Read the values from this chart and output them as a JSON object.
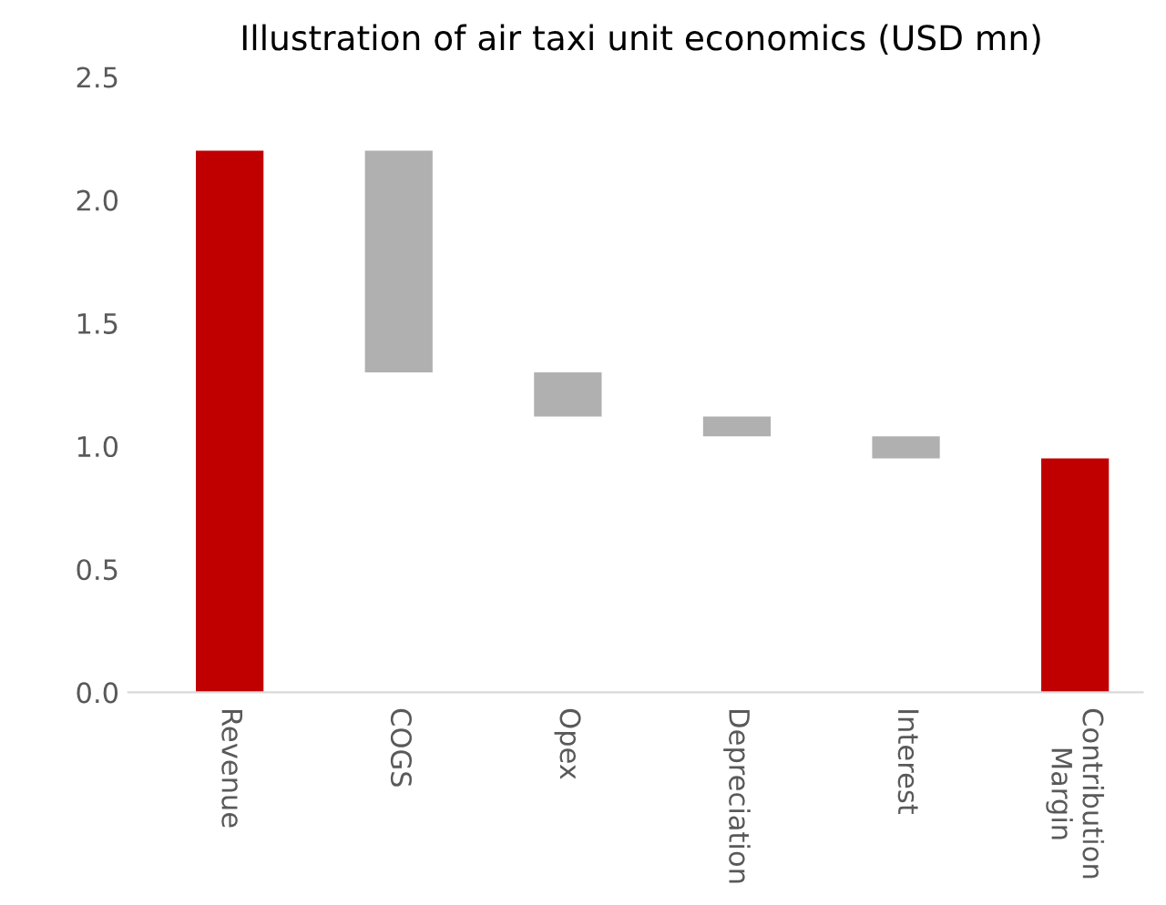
{
  "chart_data": {
    "type": "bar",
    "title": "Illustration of air taxi unit economics (USD mn)",
    "categories": [
      "Revenue",
      "COGS",
      "Opex",
      "Depreciation",
      "Interest",
      "Contribution\nMargin"
    ],
    "values": [
      2.2,
      -0.9,
      -0.18,
      -0.08,
      -0.09,
      0.95
    ],
    "base": [
      0,
      2.2,
      1.3,
      1.12,
      1.04,
      0
    ],
    "colors": [
      "#c00000",
      "#b0b0b0",
      "#b0b0b0",
      "#b0b0b0",
      "#b0b0b0",
      "#c00000"
    ],
    "ylim": [
      0,
      2.5
    ],
    "yticks": [
      {
        "value": 0,
        "label": "0.0"
      },
      {
        "value": 0.5,
        "label": "0.5"
      },
      {
        "value": 1,
        "label": "1.0"
      },
      {
        "value": 1.5,
        "label": "1.5"
      },
      {
        "value": 2,
        "label": "2.0"
      },
      {
        "value": 2.5,
        "label": "2.5"
      }
    ],
    "grid": false,
    "legend": false
  }
}
